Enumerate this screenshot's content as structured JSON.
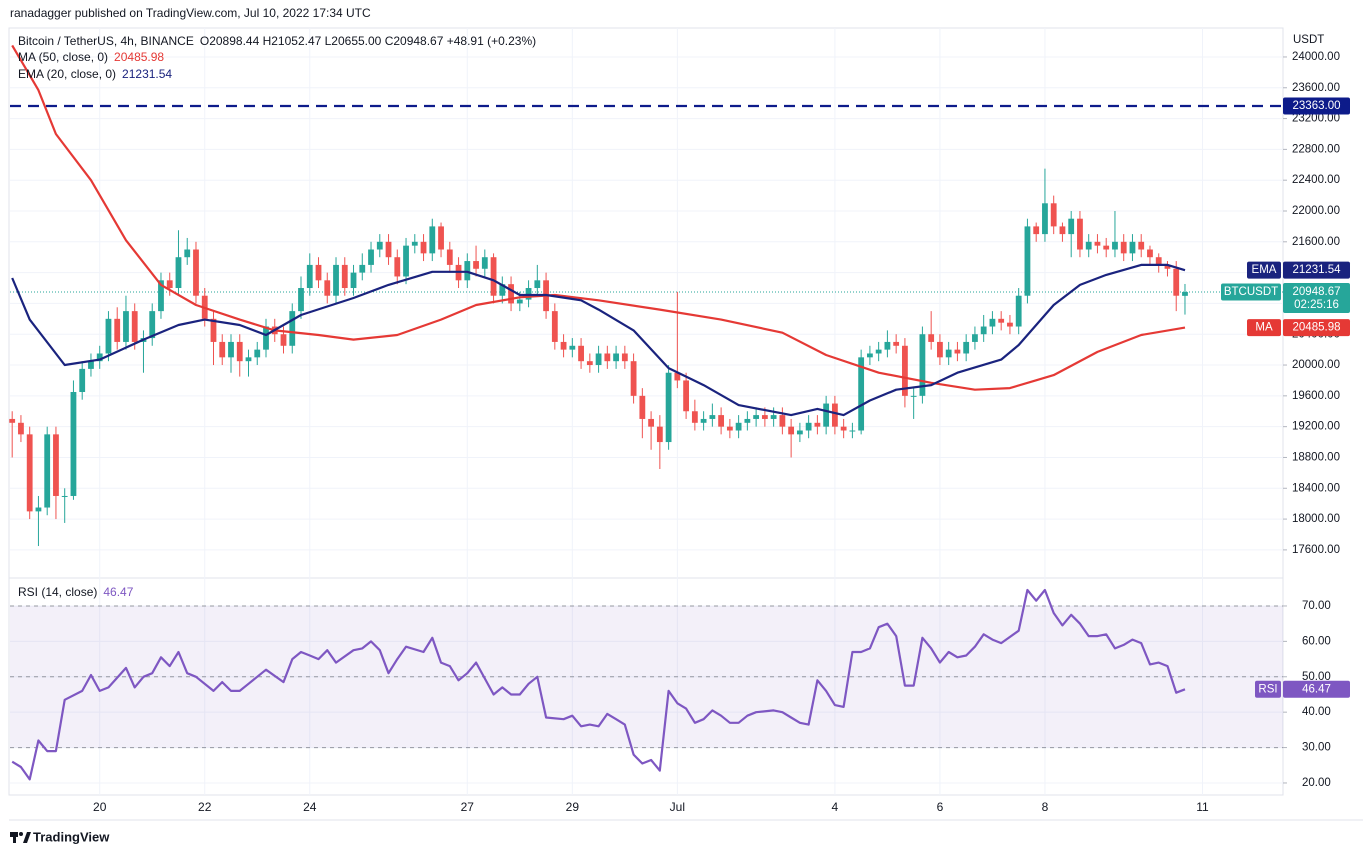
{
  "header": {
    "published": "ranadagger published on TradingView.com, Jul 10, 2022 17:34 UTC"
  },
  "footer": {
    "brand": "TradingView"
  },
  "chart_data": [
    {
      "type": "candlestick",
      "symbol": "Bitcoin / TetherUS, 4h, BINANCE",
      "legend_ohlc": "O20898.44 H21052.47 L20655.00 C20948.67 +48.91 (+0.23%)",
      "axis_unit": "USDT",
      "up_color": "#26a69a",
      "down_color": "#ef5350",
      "grid": true,
      "xlim": [
        -0.25,
        145.2
      ],
      "xticks": [
        {
          "value": 10,
          "label": "20"
        },
        {
          "value": 22,
          "label": "22"
        },
        {
          "value": 34,
          "label": "24"
        },
        {
          "value": 52,
          "label": "27"
        },
        {
          "value": 64,
          "label": "29"
        },
        {
          "value": 76,
          "label": "Jul"
        },
        {
          "value": 94,
          "label": "4"
        },
        {
          "value": 106,
          "label": "6"
        },
        {
          "value": 118,
          "label": "8"
        },
        {
          "value": 136,
          "label": "11"
        }
      ],
      "ylim": [
        17235,
        24350
      ],
      "yticks": [
        {
          "value": 17600,
          "label": "17600.00"
        },
        {
          "value": 18000,
          "label": "18000.00"
        },
        {
          "value": 18400,
          "label": "18400.00"
        },
        {
          "value": 18800,
          "label": "18800.00"
        },
        {
          "value": 19200,
          "label": "19200.00"
        },
        {
          "value": 19600,
          "label": "19600.00"
        },
        {
          "value": 20000,
          "label": "20000.00"
        },
        {
          "value": 20400,
          "label": "20400.00"
        },
        {
          "value": 20800,
          "label": "20800.00"
        },
        {
          "value": 21200,
          "label": "21200.00"
        },
        {
          "value": 21600,
          "label": "21600.00"
        },
        {
          "value": 22000,
          "label": "22000.00"
        },
        {
          "value": 22400,
          "label": "22400.00"
        },
        {
          "value": 22800,
          "label": "22800.00"
        },
        {
          "value": 23200,
          "label": "23200.00"
        },
        {
          "value": 23600,
          "label": "23600.00"
        },
        {
          "value": 24000,
          "label": "24000.00"
        }
      ],
      "open": [
        19300,
        19250,
        19100,
        18100,
        18150,
        19100,
        18300,
        18300,
        19650,
        19950,
        20050,
        20150,
        20600,
        20300,
        20700,
        20300,
        20350,
        20700,
        21100,
        21000,
        21400,
        21500,
        20900,
        20600,
        20300,
        20100,
        20300,
        20050,
        20100,
        20200,
        20500,
        20400,
        20250,
        20700,
        21000,
        21300,
        21100,
        20900,
        21300,
        21000,
        21200,
        21300,
        21500,
        21600,
        21400,
        21150,
        21550,
        21600,
        21450,
        21800,
        21500,
        21300,
        21100,
        21350,
        21250,
        21400,
        20900,
        21050,
        20800,
        20850,
        21000,
        21100,
        20700,
        20300,
        20200,
        20250,
        20050,
        20000,
        20150,
        20050,
        20150,
        20050,
        19600,
        19300,
        19200,
        19000,
        19900,
        19800,
        19400,
        19250,
        19300,
        19350,
        19200,
        19150,
        19250,
        19300,
        19350,
        19300,
        19350,
        19200,
        19100,
        19150,
        19250,
        19200,
        19500,
        19200,
        19150,
        19150,
        20100,
        20150,
        20200,
        20300,
        20250,
        19600,
        19600,
        20400,
        20300,
        20100,
        20200,
        20150,
        20300,
        20400,
        20500,
        20600,
        20550,
        20500,
        20900,
        21800,
        21700,
        22100,
        21800,
        21700,
        21900,
        21500,
        21600,
        21550,
        21500,
        21600,
        21450,
        21600,
        21500,
        21400,
        21300,
        21250,
        20898.44
      ],
      "high": [
        19400,
        19350,
        19200,
        18300,
        19200,
        19200,
        18400,
        19800,
        20050,
        20150,
        20250,
        20700,
        20750,
        20900,
        20800,
        20450,
        20800,
        21200,
        21200,
        21750,
        21650,
        21600,
        21000,
        20700,
        20400,
        20400,
        20400,
        20200,
        20300,
        20600,
        20600,
        20500,
        20800,
        21150,
        21450,
        21400,
        21200,
        21400,
        21400,
        21300,
        21450,
        21600,
        21700,
        21700,
        21500,
        21650,
        21700,
        21700,
        21900,
        21850,
        21600,
        21400,
        21450,
        21550,
        21500,
        21450,
        21150,
        21150,
        20950,
        21100,
        21300,
        21200,
        20800,
        20400,
        20350,
        20350,
        20150,
        20250,
        20250,
        20250,
        20250,
        20150,
        19700,
        19400,
        19350,
        20000,
        20950,
        19900,
        19550,
        19400,
        19500,
        19450,
        19300,
        19350,
        19400,
        19450,
        19450,
        19450,
        19450,
        19300,
        19250,
        19350,
        19350,
        19600,
        19600,
        19300,
        19250,
        20200,
        20250,
        20300,
        20450,
        20400,
        20350,
        19700,
        20500,
        20700,
        20400,
        20300,
        20300,
        20400,
        20500,
        20650,
        20700,
        20700,
        20650,
        21000,
        21900,
        21850,
        22550,
        22200,
        21850,
        22000,
        22000,
        21700,
        21700,
        21650,
        22000,
        21700,
        21700,
        21700,
        21550,
        21450,
        21350,
        21350,
        21052.47
      ],
      "low": [
        18800,
        19000,
        18000,
        17650,
        18050,
        18000,
        17950,
        18250,
        19550,
        19850,
        19950,
        20050,
        20200,
        20200,
        20200,
        19900,
        20250,
        20600,
        20900,
        20900,
        21300,
        20800,
        20500,
        20000,
        20000,
        19900,
        19850,
        19850,
        20000,
        20100,
        20300,
        20150,
        20150,
        20600,
        20900,
        21000,
        20800,
        20800,
        20900,
        20900,
        21100,
        21200,
        21400,
        21300,
        21050,
        21050,
        21450,
        21350,
        21350,
        21400,
        21200,
        21000,
        21000,
        21150,
        21150,
        20800,
        20800,
        20700,
        20700,
        20750,
        20900,
        20600,
        20200,
        20100,
        20100,
        19950,
        19900,
        19900,
        19950,
        19950,
        19950,
        19500,
        19050,
        18900,
        18650,
        18900,
        19700,
        19300,
        19150,
        19150,
        19200,
        19100,
        19050,
        19050,
        19150,
        19200,
        19200,
        19200,
        19100,
        18800,
        19000,
        19050,
        19100,
        19100,
        19100,
        19050,
        19050,
        19100,
        20000,
        20050,
        20100,
        20150,
        19450,
        19300,
        19500,
        20200,
        20000,
        20000,
        20050,
        20050,
        20200,
        20300,
        20400,
        20450,
        20400,
        20400,
        20800,
        21600,
        21600,
        21700,
        21600,
        21400,
        21400,
        21400,
        21450,
        21400,
        21400,
        21350,
        21350,
        21400,
        21300,
        21200,
        21150,
        20700,
        20655
      ],
      "close": [
        19250,
        19100,
        18100,
        18150,
        19100,
        18300,
        18300,
        19650,
        19950,
        20050,
        20150,
        20600,
        20300,
        20700,
        20300,
        20350,
        20700,
        21100,
        21000,
        21400,
        21500,
        20900,
        20600,
        20300,
        20100,
        20300,
        20050,
        20100,
        20200,
        20500,
        20400,
        20250,
        20700,
        21000,
        21300,
        21100,
        20900,
        21300,
        21000,
        21200,
        21300,
        21500,
        21600,
        21400,
        21150,
        21550,
        21600,
        21450,
        21800,
        21500,
        21300,
        21100,
        21350,
        21250,
        21400,
        20900,
        21050,
        20800,
        20850,
        21000,
        21100,
        20700,
        20300,
        20200,
        20250,
        20050,
        20000,
        20150,
        20050,
        20150,
        20050,
        19600,
        19300,
        19200,
        19000,
        19900,
        19800,
        19400,
        19250,
        19300,
        19350,
        19200,
        19150,
        19250,
        19300,
        19350,
        19300,
        19350,
        19200,
        19100,
        19150,
        19250,
        19200,
        19500,
        19200,
        19150,
        19150,
        20100,
        20150,
        20200,
        20300,
        20250,
        19600,
        19600,
        20400,
        20300,
        20100,
        20200,
        20150,
        20300,
        20400,
        20500,
        20600,
        20550,
        20500,
        20900,
        21800,
        21700,
        22100,
        21800,
        21700,
        21900,
        21500,
        21600,
        21550,
        21500,
        21600,
        21450,
        21600,
        21500,
        21400,
        21300,
        21250,
        20900,
        20948.67
      ],
      "series": [
        {
          "name": "MA (50, close, 0)",
          "short": "MA",
          "color": "#e53935",
          "value_label": "20485.98",
          "x": [
            0,
            3,
            5,
            9,
            13,
            17,
            21,
            26,
            30,
            35,
            39,
            44,
            49,
            53,
            58,
            62,
            67,
            74,
            81,
            88,
            93,
            99,
            105,
            110,
            114,
            119,
            124,
            129,
            134
          ],
          "values": [
            24150,
            23570,
            23000,
            22400,
            21620,
            21040,
            20780,
            20590,
            20450,
            20390,
            20330,
            20390,
            20590,
            20780,
            20880,
            20910,
            20840,
            20720,
            20590,
            20420,
            20130,
            19900,
            19770,
            19680,
            19700,
            19870,
            20170,
            20390,
            20485.98
          ]
        },
        {
          "name": "EMA (20, close, 0)",
          "short": "EMA",
          "color": "#1a237e",
          "value_label": "21231.54",
          "x": [
            0,
            2,
            6,
            10,
            15,
            19,
            22,
            26,
            29,
            33,
            39,
            43,
            48,
            52,
            55,
            58,
            61,
            65,
            67,
            71,
            75,
            79,
            83,
            89,
            92,
            95,
            98,
            101,
            105,
            108,
            113,
            115,
            119,
            122,
            125,
            129,
            132,
            134
          ],
          "values": [
            21130,
            20590,
            20000,
            20070,
            20330,
            20520,
            20590,
            20520,
            20390,
            20650,
            20870,
            21040,
            21210,
            21210,
            21100,
            20910,
            20910,
            20840,
            20720,
            20450,
            19960,
            19740,
            19480,
            19350,
            19430,
            19350,
            19540,
            19680,
            19740,
            19900,
            20070,
            20260,
            20780,
            21040,
            21170,
            21300,
            21300,
            21231.54
          ]
        }
      ],
      "price_line": {
        "name": "BTCUSDT",
        "value": 20948.67,
        "label": "20948.67",
        "countdown": "02:25:16",
        "color": "#26a69a"
      },
      "horizontal_line": {
        "value": 23363,
        "label": "23363.00",
        "color": "#0d1b8a"
      }
    },
    {
      "type": "line",
      "title": "RSI (14, close)",
      "short": "RSI",
      "value_label": "46.47",
      "color": "#7e57c2",
      "ylim": [
        16.6,
        77.9
      ],
      "yticks": [
        {
          "value": 20,
          "label": "20.00"
        },
        {
          "value": 30,
          "label": "30.00"
        },
        {
          "value": 40,
          "label": "40.00"
        },
        {
          "value": 50,
          "label": "50.00"
        },
        {
          "value": 60,
          "label": "60.00"
        },
        {
          "value": 70,
          "label": "70.00"
        }
      ],
      "band": [
        30,
        70
      ],
      "midline": 50,
      "x": [
        0,
        1,
        2,
        3,
        4,
        5,
        6,
        8,
        9,
        10,
        11,
        13,
        14,
        15,
        16,
        17,
        18,
        19,
        20,
        21,
        23,
        24,
        25,
        26,
        27,
        28,
        29,
        31,
        32,
        33,
        34,
        35,
        36,
        37,
        39,
        40,
        41,
        42,
        43,
        44,
        45,
        47,
        48,
        49,
        50,
        51,
        52,
        53,
        55,
        56,
        57,
        58,
        59,
        60,
        61,
        63,
        64,
        65,
        66,
        67,
        68,
        69,
        70,
        71,
        72,
        73,
        74,
        75,
        76,
        77,
        78,
        79,
        80,
        81,
        82,
        83,
        84,
        85,
        87,
        88,
        89,
        90,
        91,
        92,
        93,
        94,
        95,
        96,
        97,
        98,
        99,
        100,
        101,
        102,
        103,
        104,
        105,
        106,
        107,
        108,
        109,
        110,
        111,
        112,
        113,
        115,
        116,
        117,
        118,
        119,
        120,
        121,
        122,
        123,
        124,
        125,
        126,
        127,
        128,
        129,
        130,
        131,
        132,
        133,
        134
      ],
      "values": [
        26,
        24.5,
        21,
        32,
        29,
        29,
        43.5,
        46,
        50.5,
        46,
        47,
        52.5,
        47,
        50,
        51,
        55.5,
        53,
        57,
        51,
        50,
        46,
        48.5,
        46,
        46,
        48,
        50,
        52,
        48.5,
        55,
        57,
        56,
        55,
        57.5,
        54,
        57.5,
        58,
        60,
        57.5,
        51,
        55,
        58.5,
        57,
        61,
        54,
        53,
        49,
        51,
        54,
        45,
        47,
        45,
        45,
        48,
        50,
        38.5,
        38,
        39,
        36,
        36.5,
        36,
        39.5,
        38,
        36.5,
        28,
        25.5,
        26.5,
        23.5,
        46,
        42.5,
        41,
        37,
        38,
        40.5,
        39,
        37,
        37,
        39,
        40,
        40.5,
        40,
        38.5,
        37,
        36.5,
        49,
        46,
        42,
        41.5,
        57,
        57,
        58,
        64,
        65,
        61.5,
        47.5,
        47.5,
        61,
        58,
        54,
        57,
        55.5,
        56,
        58.5,
        62,
        60.5,
        59.5,
        63,
        74.5,
        71.5,
        74.5,
        68,
        64.5,
        67.5,
        65,
        61.5,
        61.5,
        62,
        58,
        59,
        60.5,
        59.5,
        53.5,
        54,
        53,
        45.5,
        46.47
      ]
    }
  ]
}
